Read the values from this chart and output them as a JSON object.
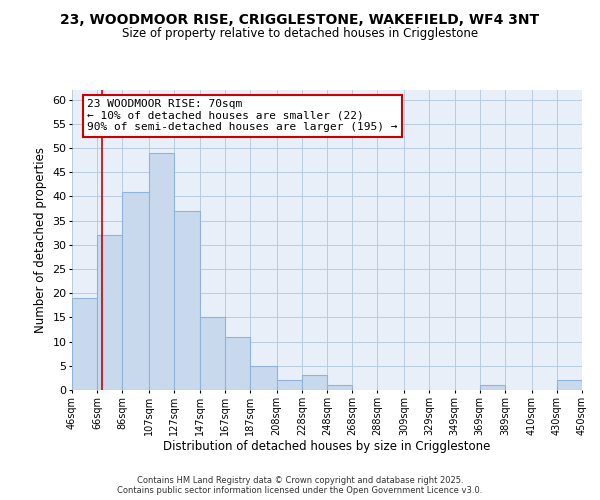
{
  "title": "23, WOODMOOR RISE, CRIGGLESTONE, WAKEFIELD, WF4 3NT",
  "subtitle": "Size of property relative to detached houses in Crigglestone",
  "xlabel": "Distribution of detached houses by size in Crigglestone",
  "ylabel": "Number of detached properties",
  "bar_color": "#c8d9ee",
  "bar_edge_color": "#8fb3d9",
  "plot_bg_color": "#e8eff8",
  "fig_bg_color": "#ffffff",
  "grid_color": "#b8cce0",
  "bins": [
    46,
    66,
    86,
    107,
    127,
    147,
    167,
    187,
    208,
    228,
    248,
    268,
    288,
    309,
    329,
    349,
    369,
    389,
    410,
    430,
    450
  ],
  "bin_labels": [
    "46sqm",
    "66sqm",
    "86sqm",
    "107sqm",
    "127sqm",
    "147sqm",
    "167sqm",
    "187sqm",
    "208sqm",
    "228sqm",
    "248sqm",
    "268sqm",
    "288sqm",
    "309sqm",
    "329sqm",
    "349sqm",
    "369sqm",
    "389sqm",
    "410sqm",
    "430sqm",
    "450sqm"
  ],
  "counts": [
    19,
    32,
    41,
    49,
    37,
    15,
    11,
    5,
    2,
    3,
    1,
    0,
    0,
    0,
    0,
    0,
    1,
    0,
    0,
    2
  ],
  "ylim": [
    0,
    62
  ],
  "yticks": [
    0,
    5,
    10,
    15,
    20,
    25,
    30,
    35,
    40,
    45,
    50,
    55,
    60
  ],
  "property_line_x": 70,
  "property_line_color": "#cc0000",
  "annotation_line1": "23 WOODMOOR RISE: 70sqm",
  "annotation_line2": "← 10% of detached houses are smaller (22)",
  "annotation_line3": "90% of semi-detached houses are larger (195) →",
  "annotation_box_color": "#ffffff",
  "annotation_box_edge": "#cc0000",
  "footer_line1": "Contains HM Land Registry data © Crown copyright and database right 2025.",
  "footer_line2": "Contains public sector information licensed under the Open Government Licence v3.0."
}
